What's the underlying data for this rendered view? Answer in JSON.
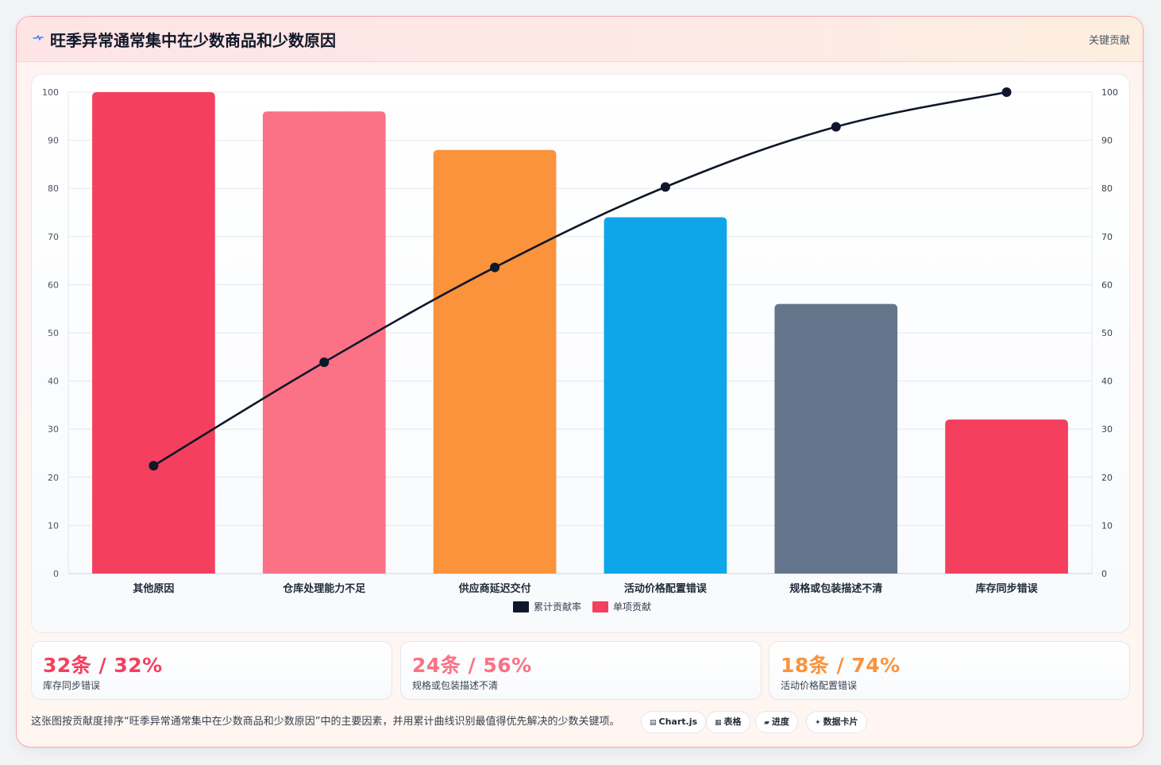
{
  "header": {
    "title": "旺季异常通常集中在少数商品和少数原因",
    "tag": "关键贡献",
    "icon": "pulse-icon"
  },
  "chart_data": {
    "type": "bar",
    "categories": [
      "其他原因",
      "仓库处理能力不足",
      "供应商延迟交付",
      "活动价格配置错误",
      "规格或包装描述不清",
      "库存同步错误"
    ],
    "series": [
      {
        "name": "单项贡献",
        "type": "bar",
        "values": [
          100,
          96,
          88,
          74,
          56,
          32
        ],
        "colors": [
          "#f43f5e",
          "#fb7185",
          "#fb923c",
          "#0ea5e9",
          "#64748b",
          "#f43f5e"
        ]
      },
      {
        "name": "累计贡献率",
        "type": "line",
        "values": [
          22.4,
          43.9,
          63.6,
          80.3,
          92.8,
          100
        ],
        "color": "#0f172a"
      }
    ],
    "y_ticks": [
      "0",
      "10",
      "20",
      "30",
      "40",
      "50",
      "60",
      "70",
      "80",
      "90",
      "100"
    ],
    "ylim": [
      0,
      100
    ],
    "y2lim": [
      0,
      100
    ],
    "grid": true,
    "legend": "bottom-center"
  },
  "stats": [
    {
      "value": "32条 / 32%",
      "label": "库存同步错误",
      "color": "#f43f5e"
    },
    {
      "value": "24条 / 56%",
      "label": "规格或包装描述不清",
      "color": "#fb7185"
    },
    {
      "value": "18条 / 74%",
      "label": "活动价格配置错误",
      "color": "#fb923c"
    }
  ],
  "footer": {
    "text": "这张图按贡献度排序“旺季异常通常集中在少数商品和少数原因”中的主要因素，并用累计曲线识别最值得优先解决的少数关键项。",
    "chips": [
      {
        "icon": "▤",
        "label": "Chart.js"
      },
      {
        "icon": "▦",
        "label": "表格"
      },
      {
        "icon": "▰",
        "label": "进度"
      },
      {
        "icon": "✦",
        "label": "数据卡片"
      }
    ]
  }
}
